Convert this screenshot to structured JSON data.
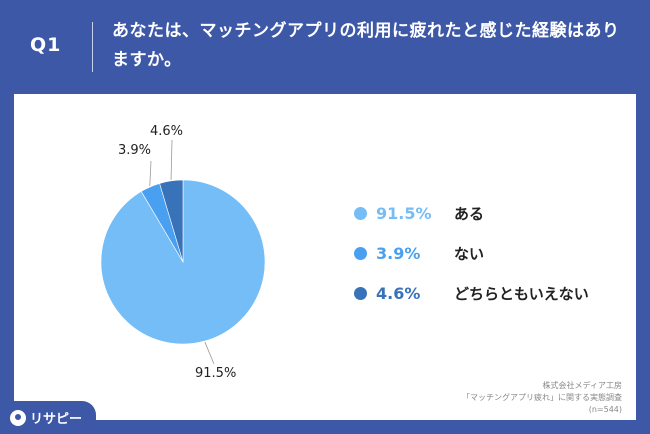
{
  "header": {
    "question_label": "Q1",
    "question_text": "あなたは、マッチングアプリの利用に疲れたと感じた経験はありますか。"
  },
  "chart_data": {
    "type": "pie",
    "categories": [
      "ある",
      "ない",
      "どちらともいえない"
    ],
    "values": [
      91.5,
      3.9,
      4.6
    ],
    "value_labels": [
      "91.5%",
      "3.9%",
      "4.6%"
    ],
    "colors": [
      "#74bdf7",
      "#4aa0f0",
      "#3872b8"
    ],
    "legend_position": "right"
  },
  "legend": [
    {
      "value": "91.5%",
      "label": "ある",
      "color": "#74bdf7"
    },
    {
      "value": "3.9%",
      "label": "ない",
      "color": "#4aa0f0"
    },
    {
      "value": "4.6%",
      "label": "どちらともいえない",
      "color": "#3872b8"
    }
  ],
  "source": {
    "line1": "株式会社メディア工房",
    "line2": "「マッチングアプリ疲れ」に関する実態調査",
    "line3": "(n=544)"
  },
  "logo": {
    "text": "リサピー",
    "icon": "risapi-logo-icon"
  }
}
